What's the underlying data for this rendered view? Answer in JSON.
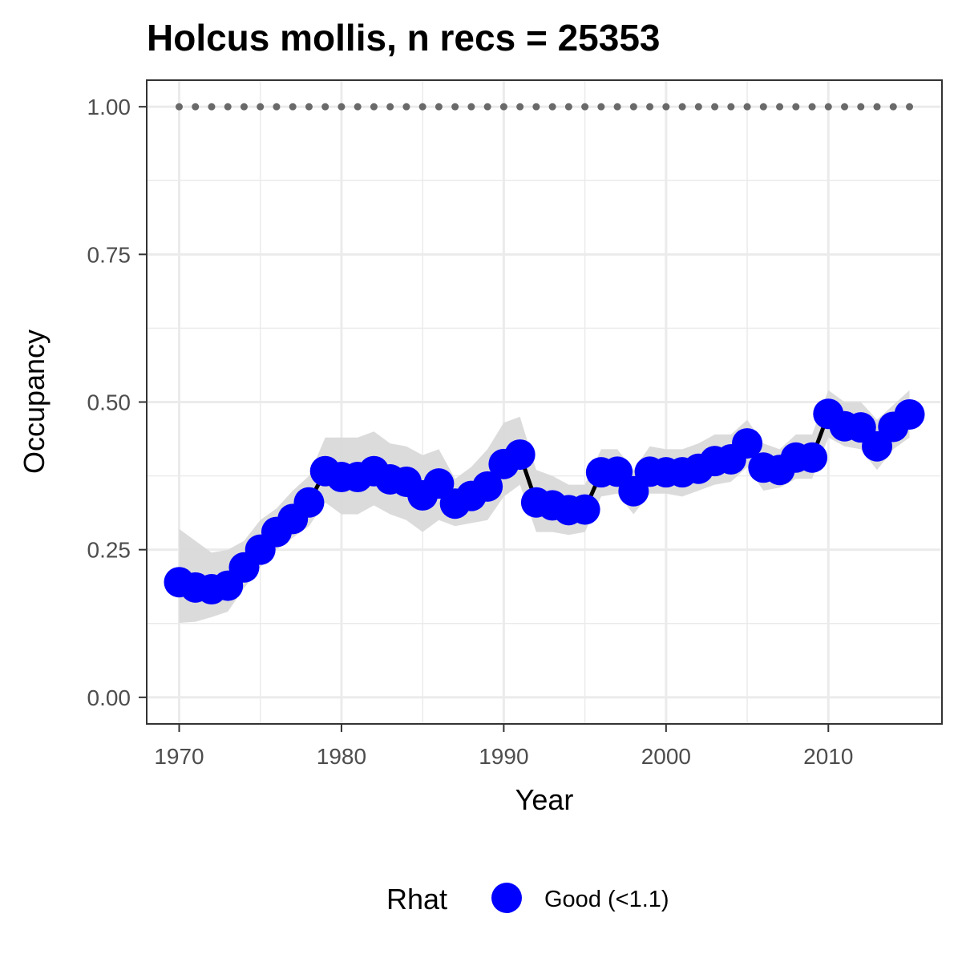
{
  "chart_data": {
    "type": "line",
    "title": "Holcus mollis, n recs = 25353",
    "xlabel": "Year",
    "ylabel": "Occupancy",
    "xlim": [
      1968,
      2017
    ],
    "ylim": [
      -0.045,
      1.045
    ],
    "x_ticks": [
      1970,
      1980,
      1990,
      2000,
      2010
    ],
    "x_tick_labels": [
      "1970",
      "1980",
      "1990",
      "2000",
      "2010"
    ],
    "y_ticks": [
      0,
      0.25,
      0.5,
      0.75,
      1.0
    ],
    "y_tick_labels": [
      "0.00",
      "0.25",
      "0.50",
      "0.75",
      "1.00"
    ],
    "grid": true,
    "legend_position": "bottom",
    "legend_title": "Rhat",
    "legend_label": "Good (<1.1)",
    "colors": {
      "point": "#0000ff",
      "line": "#000000",
      "ribbon": "#d9d9d9",
      "reference": "#696969",
      "grid": "#ebebeb",
      "panel_border": "#333333"
    },
    "x": [
      1970,
      1971,
      1972,
      1973,
      1974,
      1975,
      1976,
      1977,
      1978,
      1979,
      1980,
      1981,
      1982,
      1983,
      1984,
      1985,
      1986,
      1987,
      1988,
      1989,
      1990,
      1991,
      1992,
      1993,
      1994,
      1995,
      1996,
      1997,
      1998,
      1999,
      2000,
      2001,
      2002,
      2003,
      2004,
      2005,
      2006,
      2007,
      2008,
      2009,
      2010,
      2011,
      2012,
      2013,
      2014,
      2015
    ],
    "series": [
      {
        "values": [
          0.195,
          0.186,
          0.183,
          0.189,
          0.22,
          0.25,
          0.28,
          0.302,
          0.33,
          0.383,
          0.373,
          0.373,
          0.383,
          0.369,
          0.365,
          0.342,
          0.362,
          0.328,
          0.341,
          0.357,
          0.395,
          0.411,
          0.33,
          0.325,
          0.317,
          0.318,
          0.381,
          0.382,
          0.349,
          0.382,
          0.381,
          0.381,
          0.387,
          0.4,
          0.403,
          0.43,
          0.389,
          0.385,
          0.406,
          0.406,
          0.48,
          0.459,
          0.457,
          0.425,
          0.458,
          0.479
        ],
        "lower": [
          0.126,
          0.128,
          0.136,
          0.145,
          0.185,
          0.22,
          0.25,
          0.27,
          0.29,
          0.33,
          0.31,
          0.31,
          0.325,
          0.31,
          0.3,
          0.28,
          0.3,
          0.29,
          0.295,
          0.3,
          0.34,
          0.36,
          0.28,
          0.28,
          0.275,
          0.28,
          0.34,
          0.345,
          0.31,
          0.345,
          0.345,
          0.34,
          0.35,
          0.36,
          0.365,
          0.39,
          0.35,
          0.355,
          0.37,
          0.37,
          0.44,
          0.425,
          0.42,
          0.385,
          0.42,
          0.44
        ],
        "upper": [
          0.285,
          0.265,
          0.245,
          0.25,
          0.265,
          0.3,
          0.32,
          0.35,
          0.375,
          0.44,
          0.44,
          0.44,
          0.45,
          0.43,
          0.425,
          0.41,
          0.42,
          0.37,
          0.39,
          0.42,
          0.465,
          0.475,
          0.385,
          0.375,
          0.36,
          0.36,
          0.42,
          0.42,
          0.385,
          0.425,
          0.42,
          0.42,
          0.43,
          0.445,
          0.445,
          0.47,
          0.43,
          0.42,
          0.445,
          0.445,
          0.52,
          0.5,
          0.5,
          0.47,
          0.495,
          0.52
        ]
      }
    ],
    "reference_line": {
      "y": 1.0,
      "x_start": 1970,
      "x_end": 2015
    }
  }
}
